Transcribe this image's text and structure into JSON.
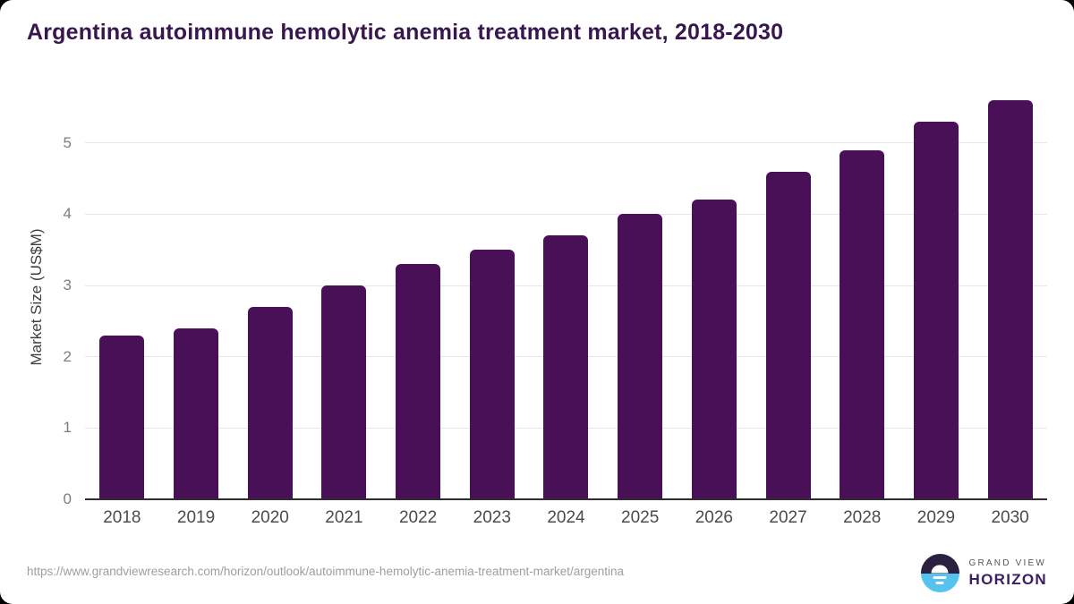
{
  "chart_data": {
    "type": "bar",
    "title": "Argentina autoimmune hemolytic anemia treatment market, 2018-2030",
    "categories": [
      "2018",
      "2019",
      "2020",
      "2021",
      "2022",
      "2023",
      "2024",
      "2025",
      "2026",
      "2027",
      "2028",
      "2029",
      "2030"
    ],
    "values": [
      2.3,
      2.4,
      2.7,
      3.0,
      3.3,
      3.5,
      3.7,
      4.0,
      4.2,
      4.6,
      4.9,
      5.3,
      5.6
    ],
    "xlabel": "",
    "ylabel": "Market Size (US$M)",
    "ylim": [
      0,
      5.75
    ],
    "yticks": [
      0,
      1,
      2,
      3,
      4,
      5
    ],
    "grid": true,
    "legend": false,
    "bar_color": "#4a1057"
  },
  "colors": {
    "title_text": "#38174e",
    "bar": "#4a1057",
    "gridline": "#e7e7e7",
    "axis_line": "#2e2e2e",
    "x_tick_text": "#4b4b4b",
    "y_tick_text": "#7d7d7d",
    "y_axis_title_text": "#3f3f3f",
    "footer_text": "#9e9e9e",
    "logo_top_half": "#2a2140",
    "logo_bottom_half": "#55c3ee",
    "logo_horizon_text": "#3a2062",
    "logo_grand_view_text": "#55555f"
  },
  "footer": {
    "source_url": "https://www.grandviewresearch.com/horizon/outlook/autoimmune-hemolytic-anemia-treatment-market/argentina",
    "logo_line1": "GRAND VIEW",
    "logo_line2": "HORIZON"
  }
}
